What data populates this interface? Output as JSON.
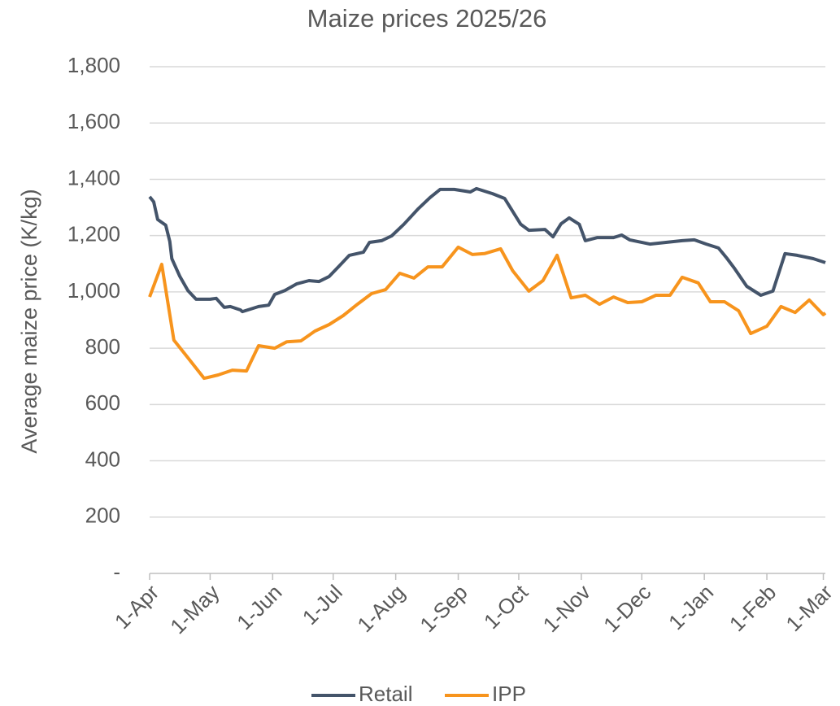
{
  "chart_data": {
    "type": "line",
    "title": "Maize prices 2025/26",
    "y_label": "Average maize price (K/kg)",
    "xlim": [
      0,
      335
    ],
    "xticks": [
      {
        "value": 0,
        "label": "1-Apr"
      },
      {
        "value": 30,
        "label": "1-May"
      },
      {
        "value": 61,
        "label": "1-Jun"
      },
      {
        "value": 91,
        "label": "1-Jul"
      },
      {
        "value": 122,
        "label": "1-Aug"
      },
      {
        "value": 153,
        "label": "1-Sep"
      },
      {
        "value": 183,
        "label": "1-Oct"
      },
      {
        "value": 214,
        "label": "1-Nov"
      },
      {
        "value": 244,
        "label": "1-Dec"
      },
      {
        "value": 275,
        "label": "1-Jan"
      },
      {
        "value": 306,
        "label": "1-Feb"
      },
      {
        "value": 334,
        "label": "1-Mar"
      }
    ],
    "ylim": [
      0,
      1800
    ],
    "yticks": [
      {
        "value": 0,
        "label": "-"
      },
      200,
      400,
      600,
      800,
      {
        "value": 1000,
        "label": "1,000"
      },
      {
        "value": 1200,
        "label": "1,200"
      },
      {
        "value": 1400,
        "label": "1,400"
      },
      {
        "value": 1600,
        "label": "1,600"
      },
      {
        "value": 1800,
        "label": "1,800"
      }
    ],
    "grid": true,
    "legend": "bottom",
    "series": [
      {
        "name": "Retail",
        "color": "#44546a",
        "x": [
          0,
          2,
          4,
          8,
          10,
          11,
          15,
          19,
          23,
          30,
          33,
          37,
          40,
          45,
          46,
          54,
          59,
          62,
          67,
          73,
          79,
          84,
          89,
          94,
          99,
          106,
          109,
          115,
          120,
          126,
          133,
          139,
          144,
          151,
          159,
          162,
          170,
          176,
          184,
          188,
          196,
          200,
          204,
          208,
          213,
          216,
          222,
          230,
          234,
          238,
          248,
          256,
          264,
          270,
          276,
          282,
          286,
          290,
          296,
          303,
          309,
          312,
          315,
          321,
          329,
          335
        ],
        "values": [
          1338,
          1320,
          1257,
          1237,
          1179,
          1118,
          1055,
          1005,
          974,
          974,
          977,
          945,
          948,
          936,
          930,
          948,
          953,
          991,
          1005,
          1029,
          1040,
          1037,
          1055,
          1092,
          1130,
          1141,
          1176,
          1182,
          1199,
          1240,
          1294,
          1335,
          1364,
          1364,
          1355,
          1367,
          1349,
          1332,
          1240,
          1219,
          1222,
          1196,
          1242,
          1263,
          1240,
          1182,
          1193,
          1193,
          1202,
          1185,
          1170,
          1176,
          1182,
          1185,
          1170,
          1156,
          1121,
          1083,
          1020,
          988,
          1003,
          1069,
          1136,
          1130,
          1118,
          1104
        ]
      },
      {
        "name": "IPP",
        "color": "#f7941d",
        "x": [
          0,
          6,
          12,
          19,
          27,
          34,
          41,
          48,
          54,
          62,
          68,
          75,
          82,
          89,
          96,
          103,
          110,
          117,
          124,
          131,
          138,
          145,
          153,
          160,
          166,
          174,
          180,
          188,
          195,
          202,
          209,
          216,
          223,
          230,
          237,
          244,
          251,
          258,
          264,
          272,
          278,
          285,
          292,
          298,
          306,
          313,
          320,
          327,
          334,
          335
        ],
        "values": [
          982,
          1098,
          829,
          766,
          693,
          705,
          722,
          719,
          809,
          800,
          823,
          826,
          861,
          884,
          916,
          956,
          994,
          1008,
          1066,
          1049,
          1089,
          1089,
          1159,
          1133,
          1136,
          1153,
          1075,
          1003,
          1040,
          1130,
          979,
          988,
          956,
          982,
          962,
          965,
          988,
          988,
          1052,
          1032,
          965,
          965,
          933,
          852,
          878,
          948,
          927,
          971,
          919,
          925
        ]
      }
    ]
  }
}
